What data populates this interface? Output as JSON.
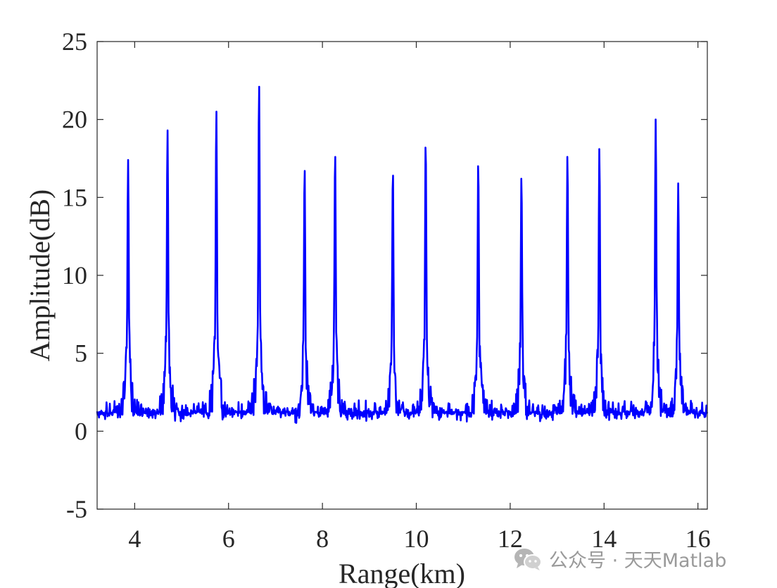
{
  "chart_data": {
    "type": "line",
    "xlabel": "Range(km)",
    "ylabel": "Amplitude(dB)",
    "xlim": [
      3.2,
      16.2
    ],
    "ylim": [
      -5,
      25
    ],
    "xticks": [
      4,
      6,
      8,
      10,
      12,
      14,
      16
    ],
    "yticks": [
      -5,
      0,
      5,
      10,
      15,
      20,
      25
    ],
    "grid": false,
    "box": true,
    "series": [
      {
        "color": "#0000ff",
        "peaks": [
          {
            "x": 3.86,
            "y": 17.4
          },
          {
            "x": 4.7,
            "y": 19.3
          },
          {
            "x": 5.74,
            "y": 20.5
          },
          {
            "x": 6.65,
            "y": 22.1
          },
          {
            "x": 7.62,
            "y": 16.7
          },
          {
            "x": 8.27,
            "y": 17.6
          },
          {
            "x": 9.5,
            "y": 16.4
          },
          {
            "x": 10.2,
            "y": 18.2
          },
          {
            "x": 11.32,
            "y": 17.0
          },
          {
            "x": 12.24,
            "y": 16.2
          },
          {
            "x": 13.22,
            "y": 17.6
          },
          {
            "x": 13.9,
            "y": 18.1
          },
          {
            "x": 15.1,
            "y": 20.0
          },
          {
            "x": 15.58,
            "y": 15.9
          }
        ],
        "noise_floor_range": [
          -5,
          5
        ]
      }
    ]
  },
  "watermark": {
    "text": "公众号 · 天天Matlab",
    "icon": "wechat-icon"
  }
}
